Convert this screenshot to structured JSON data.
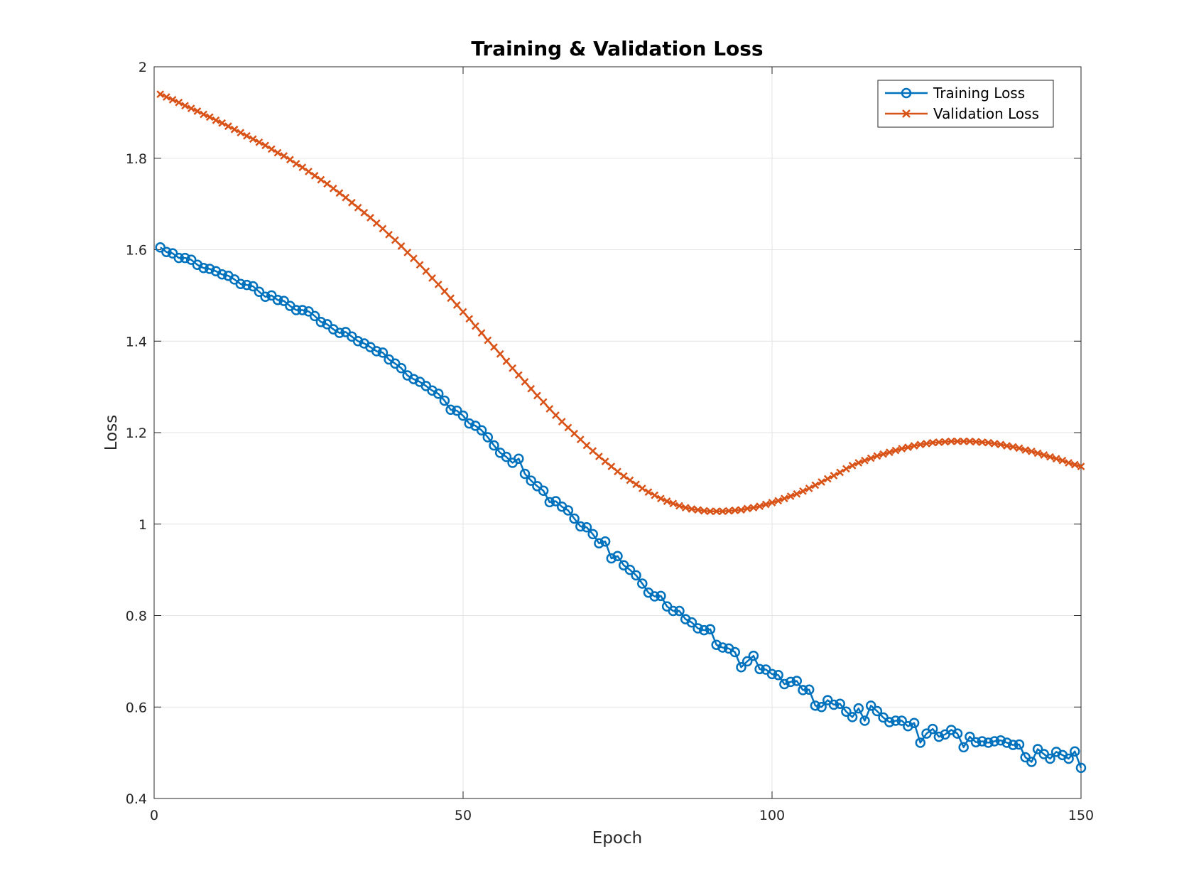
{
  "chart_data": {
    "type": "line",
    "title": "Training & Validation Loss",
    "xlabel": "Epoch",
    "ylabel": "Loss",
    "xlim": [
      0,
      150
    ],
    "ylim": [
      0.4,
      2.0
    ],
    "xticks": [
      0,
      50,
      100,
      150
    ],
    "yticks": [
      0.4,
      0.6,
      0.8,
      1.0,
      1.2,
      1.4,
      1.6,
      1.8,
      2.0
    ],
    "xtick_labels": [
      "0",
      "50",
      "100",
      "150"
    ],
    "ytick_labels": [
      "0.4",
      "0.6",
      "0.8",
      "1",
      "1.2",
      "1.4",
      "1.6",
      "1.8",
      "2"
    ],
    "grid": true,
    "legend_position": "top-right",
    "x": [
      1,
      2,
      3,
      4,
      5,
      6,
      7,
      8,
      9,
      10,
      11,
      12,
      13,
      14,
      15,
      16,
      17,
      18,
      19,
      20,
      21,
      22,
      23,
      24,
      25,
      26,
      27,
      28,
      29,
      30,
      31,
      32,
      33,
      34,
      35,
      36,
      37,
      38,
      39,
      40,
      41,
      42,
      43,
      44,
      45,
      46,
      47,
      48,
      49,
      50,
      51,
      52,
      53,
      54,
      55,
      56,
      57,
      58,
      59,
      60,
      61,
      62,
      63,
      64,
      65,
      66,
      67,
      68,
      69,
      70,
      71,
      72,
      73,
      74,
      75,
      76,
      77,
      78,
      79,
      80,
      81,
      82,
      83,
      84,
      85,
      86,
      87,
      88,
      89,
      90,
      91,
      92,
      93,
      94,
      95,
      96,
      97,
      98,
      99,
      100,
      101,
      102,
      103,
      104,
      105,
      106,
      107,
      108,
      109,
      110,
      111,
      112,
      113,
      114,
      115,
      116,
      117,
      118,
      119,
      120,
      121,
      122,
      123,
      124,
      125,
      126,
      127,
      128,
      129,
      130,
      131,
      132,
      133,
      134,
      135,
      136,
      137,
      138,
      139,
      140,
      141,
      142,
      143,
      144,
      145,
      146,
      147,
      148,
      149,
      150
    ],
    "series": [
      {
        "name": "Training Loss",
        "color": "#0072bd",
        "marker": "circle",
        "values": [
          1.605,
          1.595,
          1.592,
          1.582,
          1.582,
          1.578,
          1.567,
          1.56,
          1.558,
          1.553,
          1.546,
          1.543,
          1.535,
          1.525,
          1.523,
          1.52,
          1.508,
          1.497,
          1.5,
          1.49,
          1.488,
          1.477,
          1.468,
          1.468,
          1.465,
          1.455,
          1.442,
          1.437,
          1.426,
          1.418,
          1.42,
          1.41,
          1.4,
          1.395,
          1.387,
          1.378,
          1.375,
          1.36,
          1.351,
          1.341,
          1.325,
          1.317,
          1.311,
          1.302,
          1.292,
          1.285,
          1.27,
          1.25,
          1.248,
          1.237,
          1.22,
          1.215,
          1.205,
          1.19,
          1.172,
          1.156,
          1.147,
          1.134,
          1.143,
          1.11,
          1.095,
          1.083,
          1.073,
          1.048,
          1.05,
          1.038,
          1.03,
          1.012,
          0.995,
          0.993,
          0.978,
          0.958,
          0.962,
          0.925,
          0.93,
          0.91,
          0.9,
          0.888,
          0.87,
          0.85,
          0.842,
          0.843,
          0.82,
          0.81,
          0.81,
          0.792,
          0.785,
          0.772,
          0.768,
          0.77,
          0.736,
          0.73,
          0.728,
          0.72,
          0.687,
          0.7,
          0.712,
          0.683,
          0.682,
          0.672,
          0.67,
          0.65,
          0.655,
          0.657,
          0.637,
          0.638,
          0.603,
          0.6,
          0.615,
          0.605,
          0.607,
          0.59,
          0.578,
          0.597,
          0.57,
          0.603,
          0.591,
          0.577,
          0.567,
          0.57,
          0.57,
          0.558,
          0.565,
          0.522,
          0.542,
          0.552,
          0.535,
          0.54,
          0.55,
          0.542,
          0.512,
          0.535,
          0.523,
          0.525,
          0.522,
          0.525,
          0.527,
          0.522,
          0.517,
          0.518,
          0.49,
          0.48,
          0.508,
          0.497,
          0.487,
          0.502,
          0.495,
          0.487,
          0.503,
          0.467
        ]
      },
      {
        "name": "Validation Loss",
        "color": "#d95319",
        "marker": "x",
        "values": [
          1.94,
          1.934,
          1.928,
          1.922,
          1.915,
          1.909,
          1.903,
          1.896,
          1.89,
          1.883,
          1.877,
          1.87,
          1.863,
          1.856,
          1.849,
          1.842,
          1.835,
          1.828,
          1.82,
          1.812,
          1.805,
          1.797,
          1.788,
          1.78,
          1.771,
          1.762,
          1.753,
          1.744,
          1.734,
          1.724,
          1.714,
          1.703,
          1.692,
          1.681,
          1.67,
          1.658,
          1.646,
          1.633,
          1.621,
          1.608,
          1.594,
          1.581,
          1.567,
          1.553,
          1.538,
          1.524,
          1.509,
          1.494,
          1.479,
          1.464,
          1.449,
          1.433,
          1.418,
          1.402,
          1.387,
          1.372,
          1.356,
          1.341,
          1.326,
          1.311,
          1.296,
          1.281,
          1.267,
          1.252,
          1.238,
          1.224,
          1.211,
          1.198,
          1.185,
          1.172,
          1.16,
          1.148,
          1.137,
          1.126,
          1.115,
          1.105,
          1.096,
          1.087,
          1.078,
          1.07,
          1.063,
          1.056,
          1.05,
          1.045,
          1.04,
          1.036,
          1.033,
          1.031,
          1.029,
          1.028,
          1.028,
          1.028,
          1.029,
          1.03,
          1.031,
          1.034,
          1.036,
          1.039,
          1.043,
          1.047,
          1.051,
          1.056,
          1.061,
          1.066,
          1.072,
          1.078,
          1.085,
          1.092,
          1.099,
          1.106,
          1.113,
          1.121,
          1.128,
          1.134,
          1.139,
          1.144,
          1.149,
          1.153,
          1.157,
          1.161,
          1.165,
          1.168,
          1.171,
          1.174,
          1.176,
          1.178,
          1.179,
          1.18,
          1.181,
          1.181,
          1.181,
          1.181,
          1.18,
          1.179,
          1.178,
          1.176,
          1.174,
          1.171,
          1.169,
          1.166,
          1.162,
          1.159,
          1.155,
          1.151,
          1.147,
          1.143,
          1.139,
          1.134,
          1.13,
          1.126
        ]
      }
    ]
  }
}
